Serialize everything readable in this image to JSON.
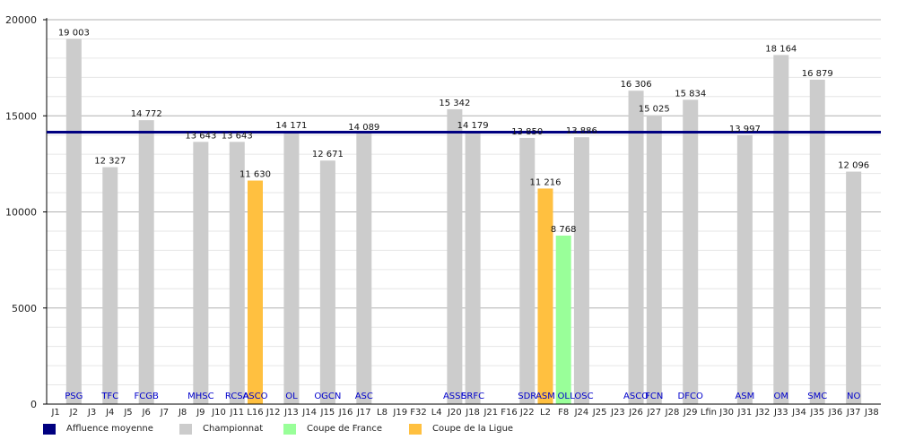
{
  "chart_data": {
    "type": "bar",
    "ylim": [
      0,
      20000
    ],
    "yticks": [
      0,
      5000,
      10000,
      15000,
      20000
    ],
    "grid": true,
    "legend_position": "bottom-left",
    "average_line": {
      "value": 14150,
      "color": "#000080"
    },
    "categories": [
      "J1",
      "J2",
      "J3",
      "J4",
      "J5",
      "J6",
      "J7",
      "J8",
      "J9",
      "J10",
      "J11",
      "L16",
      "J12",
      "J13",
      "J14",
      "J15",
      "J16",
      "J17",
      "L8",
      "J19",
      "F32",
      "L4",
      "J20",
      "J18",
      "J21",
      "F16",
      "J22",
      "L2",
      "F8",
      "J24",
      "J25",
      "J23",
      "J26",
      "J27",
      "J28",
      "J29",
      "Lfin",
      "J30",
      "J31",
      "J32",
      "J33",
      "J34",
      "J35",
      "J36",
      "J37",
      "J38"
    ],
    "series": [
      {
        "name": "Championnat",
        "color": "#cccccc",
        "points": [
          {
            "x": "J2",
            "value": 19003,
            "label": "19 003",
            "team": "PSG"
          },
          {
            "x": "J4",
            "value": 12327,
            "label": "12 327",
            "team": "TFC"
          },
          {
            "x": "J6",
            "value": 14772,
            "label": "14 772",
            "team": "FCGB"
          },
          {
            "x": "J9",
            "value": 13643,
            "label": "13 643",
            "team": "MHSC"
          },
          {
            "x": "J11",
            "value": 13643,
            "label": "13 643",
            "team": "RCSA"
          },
          {
            "x": "J13",
            "value": 14171,
            "label": "14 171",
            "team": "OL"
          },
          {
            "x": "J15",
            "value": 12671,
            "label": "12 671",
            "team": "OGCN"
          },
          {
            "x": "J17",
            "value": 14089,
            "label": "14 089",
            "team": "ASC"
          },
          {
            "x": "J20",
            "value": 15342,
            "label": "15 342",
            "team": "ASSE"
          },
          {
            "x": "J18",
            "value": 14179,
            "label": "14 179",
            "team": "SRFC"
          },
          {
            "x": "J22",
            "value": 13850,
            "label": "13 850",
            "team": "SDR"
          },
          {
            "x": "J24",
            "value": 13886,
            "label": "13 886",
            "team": "LOSC"
          },
          {
            "x": "J26",
            "value": 16306,
            "label": "16 306",
            "team": "ASCO"
          },
          {
            "x": "J27",
            "value": 15025,
            "label": "15 025",
            "team": "FCN"
          },
          {
            "x": "J29",
            "value": 15834,
            "label": "15 834",
            "team": "DFCO"
          },
          {
            "x": "J31",
            "value": 13997,
            "label": "13 997",
            "team": "ASM"
          },
          {
            "x": "J33",
            "value": 18164,
            "label": "18 164",
            "team": "OM"
          },
          {
            "x": "J35",
            "value": 16879,
            "label": "16 879",
            "team": "SMC"
          },
          {
            "x": "J37",
            "value": 12096,
            "label": "12 096",
            "team": "NO"
          }
        ]
      },
      {
        "name": "Coupe de France",
        "color": "#99ff99",
        "points": [
          {
            "x": "F8",
            "value": 8768,
            "label": "8 768",
            "team": "OL"
          }
        ]
      },
      {
        "name": "Coupe de la Ligue",
        "color": "#ffc040",
        "points": [
          {
            "x": "L16",
            "value": 11630,
            "label": "11 630",
            "team": "ASCO"
          },
          {
            "x": "L2",
            "value": 11216,
            "label": "11 216",
            "team": "ASM"
          }
        ]
      }
    ],
    "legend": [
      {
        "label": "Affluence moyenne",
        "color": "#000080"
      },
      {
        "label": "Championnat",
        "color": "#cccccc"
      },
      {
        "label": "Coupe de France",
        "color": "#99ff99"
      },
      {
        "label": "Coupe de la Ligue",
        "color": "#ffc040"
      }
    ]
  }
}
